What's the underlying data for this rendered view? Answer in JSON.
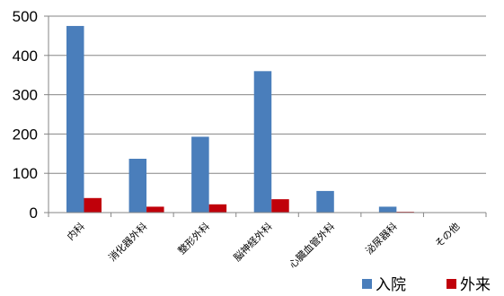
{
  "chart_data": {
    "type": "bar",
    "categories": [
      "内科",
      "消化器外科",
      "整形外科",
      "脳神経外科",
      "心臓血管外科",
      "泌尿器科",
      "その他"
    ],
    "series": [
      {
        "name": "入院",
        "values": [
          475,
          137,
          193,
          360,
          55,
          15,
          0
        ],
        "color": "#4a7ebb"
      },
      {
        "name": "外来",
        "values": [
          37,
          15,
          21,
          34,
          0,
          2,
          0
        ],
        "color": "#c0000a"
      }
    ],
    "ylim": [
      0,
      500
    ],
    "yticks": [
      0,
      100,
      200,
      300,
      400,
      500
    ],
    "grid": true,
    "legend": "bottom-right",
    "title": "",
    "xlabel": "",
    "ylabel": ""
  }
}
